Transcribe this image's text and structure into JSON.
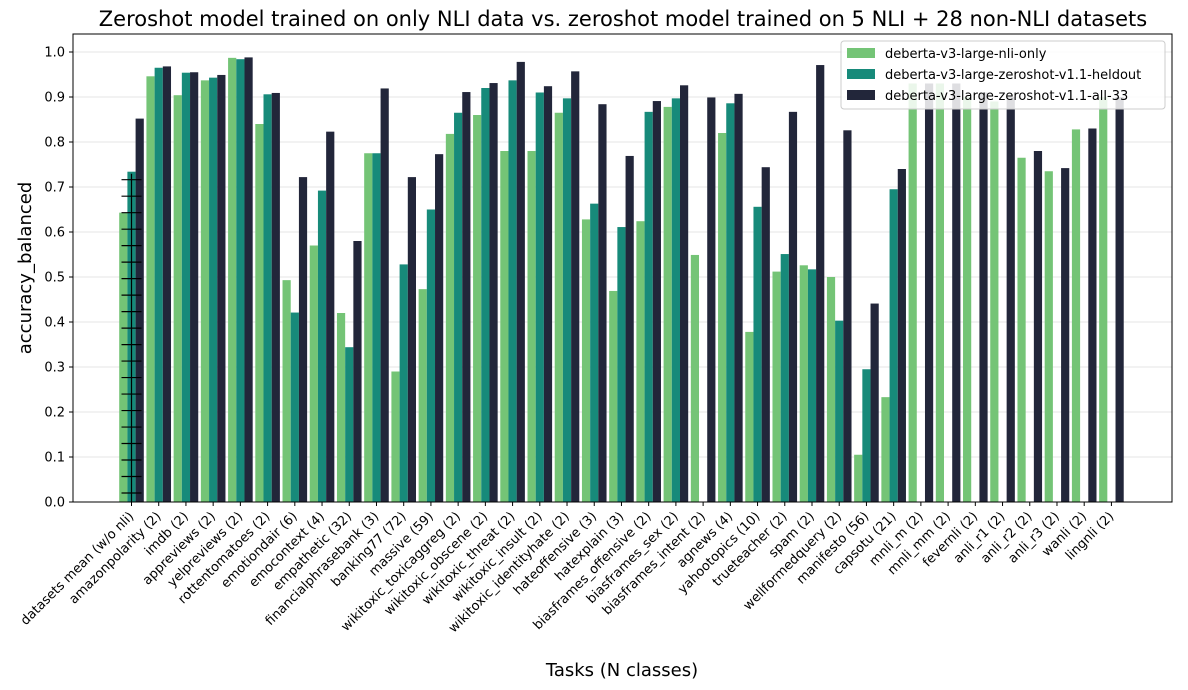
{
  "chart_data": {
    "type": "bar",
    "title": "Zeroshot model trained on only NLI data vs. zeroshot model trained on 5 NLI + 28 non-NLI datasets",
    "xlabel": "Tasks (N classes)",
    "ylabel": "accuracy_balanced",
    "ylim": [
      0,
      1.04
    ],
    "yticks": [
      "0.0",
      "0.1",
      "0.2",
      "0.3",
      "0.4",
      "0.5",
      "0.6",
      "0.7",
      "0.8",
      "0.9",
      "1.0"
    ],
    "grid": "horizontal",
    "legend_position": "top-right",
    "categories": [
      "datasets mean (w/o nli)",
      "amazonpolarity (2)",
      "imdb (2)",
      "appreviews (2)",
      "yelpreviews (2)",
      "rottentomatoes (2)",
      "emotiondair (6)",
      "emocontext (4)",
      "empathetic (32)",
      "financialphrasebank (3)",
      "banking77 (72)",
      "massive (59)",
      "wikitoxic_toxicaggreg (2)",
      "wikitoxic_obscene (2)",
      "wikitoxic_threat (2)",
      "wikitoxic_insult (2)",
      "wikitoxic_identityhate (2)",
      "hateoffensive (3)",
      "hatexplain (3)",
      "biasframes_offensive (2)",
      "biasframes_sex (2)",
      "biasframes_intent (2)",
      "agnews (4)",
      "yahootopics (10)",
      "trueteacher (2)",
      "spam (2)",
      "wellformedquery (2)",
      "manifesto (56)",
      "capsotu (21)",
      "mnli_m (2)",
      "mnli_mm (2)",
      "fevernli (2)",
      "anli_r1 (2)",
      "anli_r2 (2)",
      "anli_r3 (2)",
      "wanli (2)",
      "lingnli (2)"
    ],
    "series": [
      {
        "name": "deberta-v3-large-nli-only",
        "color": "#74c476",
        "values": [
          0.643,
          0.946,
          0.904,
          0.937,
          0.987,
          0.84,
          0.493,
          0.57,
          0.42,
          0.775,
          0.29,
          0.473,
          0.818,
          0.86,
          0.78,
          0.78,
          0.865,
          0.628,
          0.469,
          0.624,
          0.878,
          0.549,
          0.82,
          0.378,
          0.512,
          0.526,
          0.5,
          0.105,
          0.233,
          0.93,
          0.93,
          0.9,
          0.89,
          0.765,
          0.735,
          0.828,
          0.9
        ]
      },
      {
        "name": "deberta-v3-large-zeroshot-v1.1-heldout",
        "color": "#178a7a",
        "values": [
          0.734,
          0.965,
          0.954,
          0.943,
          0.984,
          0.906,
          0.421,
          0.692,
          0.344,
          0.775,
          0.528,
          0.65,
          0.865,
          0.92,
          0.937,
          0.91,
          0.897,
          0.663,
          0.611,
          0.867,
          0.897,
          null,
          0.886,
          0.656,
          0.551,
          0.517,
          0.403,
          0.295,
          0.695,
          null,
          null,
          null,
          null,
          null,
          null,
          null,
          null
        ]
      },
      {
        "name": "deberta-v3-large-zeroshot-v1.1-all-33",
        "color": "#22263a",
        "values": [
          0.852,
          0.968,
          0.955,
          0.949,
          0.988,
          0.909,
          0.722,
          0.823,
          0.58,
          0.919,
          0.722,
          0.773,
          0.911,
          0.931,
          0.978,
          0.924,
          0.957,
          0.884,
          0.769,
          0.891,
          0.926,
          0.899,
          0.907,
          0.744,
          0.867,
          0.971,
          0.826,
          0.441,
          0.74,
          0.93,
          0.93,
          0.91,
          0.9,
          0.78,
          0.742,
          0.83,
          0.9
        ]
      }
    ],
    "error_bars": {
      "category": "datasets mean (w/o nli)",
      "series": "deberta-v3-large-zeroshot-v1.1-heldout",
      "color": "#000000"
    }
  }
}
